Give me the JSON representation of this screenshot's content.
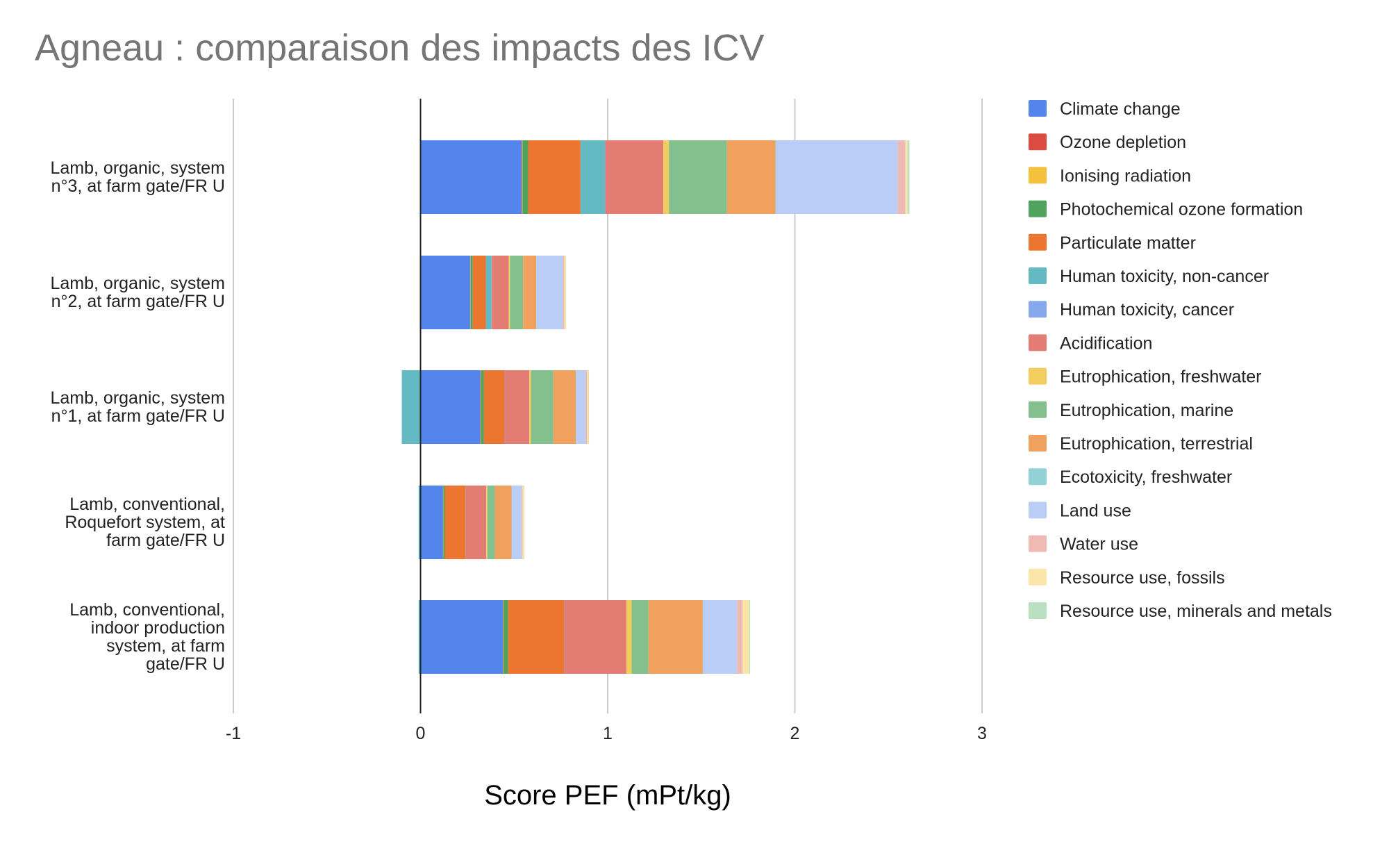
{
  "chart_data": {
    "type": "bar",
    "orientation": "horizontal",
    "stacked": true,
    "title": "Agneau : comparaison des impacts des ICV",
    "xlabel": "Score PEF (mPt/kg)",
    "ylabel": "",
    "xlim": [
      -1,
      3
    ],
    "xticks": [
      "-1",
      "0",
      "1",
      "2",
      "3"
    ],
    "grid": true,
    "legend_position": "right",
    "categories": [
      [
        "Lamb, organic, system",
        "n°3, at farm gate/FR U"
      ],
      [
        "Lamb, organic, system",
        "n°2, at farm gate/FR U"
      ],
      [
        "Lamb, organic, system",
        "n°1, at farm gate/FR U"
      ],
      [
        "Lamb, conventional,",
        "Roquefort system, at",
        "farm gate/FR U"
      ],
      [
        "Lamb, conventional,",
        "indoor production",
        "system, at farm",
        "gate/FR U"
      ]
    ],
    "series": [
      {
        "name": "Climate change",
        "color": "#5385ec",
        "values": [
          0.54,
          0.265,
          0.32,
          0.12,
          0.44
        ]
      },
      {
        "name": "Ozone depletion",
        "color": "#dc4b3f",
        "values": [
          0.002,
          0.001,
          0.001,
          0.001,
          0.001
        ]
      },
      {
        "name": "Ionising radiation",
        "color": "#f4c13d",
        "values": [
          0.003,
          0.002,
          0.002,
          0.001,
          0.002
        ]
      },
      {
        "name": "Photochemical ozone formation",
        "color": "#50a35c",
        "values": [
          0.03,
          0.011,
          0.016,
          0.008,
          0.025
        ]
      },
      {
        "name": "Particulate matter",
        "color": "#ec7530",
        "values": [
          0.28,
          0.07,
          0.11,
          0.11,
          0.3
        ]
      },
      {
        "name": "Human toxicity, non-cancer",
        "color": "#64bac2",
        "values": [
          0.13,
          0.03,
          -0.1,
          -0.01,
          -0.01
        ]
      },
      {
        "name": "Human toxicity, cancer",
        "color": "#86a9ee",
        "values": [
          0.002,
          0.002,
          0.002,
          0.001,
          0.002
        ]
      },
      {
        "name": "Acidification",
        "color": "#e37d74",
        "values": [
          0.31,
          0.09,
          0.13,
          0.11,
          0.33
        ]
      },
      {
        "name": "Eutrophication, freshwater",
        "color": "#f3cd5e",
        "values": [
          0.03,
          0.007,
          0.009,
          0.006,
          0.028
        ]
      },
      {
        "name": "Eutrophication, marine",
        "color": "#84c08d",
        "values": [
          0.31,
          0.07,
          0.12,
          0.04,
          0.09
        ]
      },
      {
        "name": "Eutrophication, terrestrial",
        "color": "#f0a15e",
        "values": [
          0.26,
          0.07,
          0.12,
          0.09,
          0.29
        ]
      },
      {
        "name": "Ecotoxicity, freshwater",
        "color": "#92d2d6",
        "values": [
          0.003,
          0.002,
          0.002,
          0.002,
          0.003
        ]
      },
      {
        "name": "Land use",
        "color": "#b9cdf6",
        "values": [
          0.65,
          0.14,
          0.05,
          0.05,
          0.18
        ]
      },
      {
        "name": "Water use",
        "color": "#efb9b4",
        "values": [
          0.04,
          0.008,
          0.008,
          0.006,
          0.03
        ]
      },
      {
        "name": "Resource use, fossils",
        "color": "#fbe5a8",
        "values": [
          0.012,
          0.008,
          0.008,
          0.008,
          0.035
        ]
      },
      {
        "name": "Resource use, minerals and metals",
        "color": "#b9e0c1",
        "values": [
          0.01,
          0.002,
          0.002,
          0.002,
          0.005
        ]
      }
    ]
  }
}
